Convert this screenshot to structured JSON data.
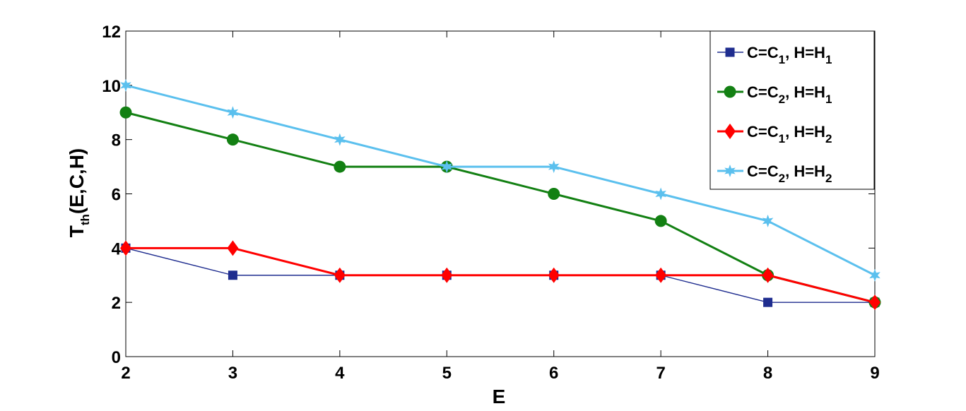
{
  "chart_data": {
    "type": "line",
    "x": [
      2,
      3,
      4,
      5,
      6,
      7,
      8,
      9
    ],
    "xlabel": "E",
    "ylabel": {
      "main": "T",
      "sub": "th",
      "rest": "(E,C,H)"
    },
    "xlim": [
      2,
      9
    ],
    "ylim": [
      0,
      12
    ],
    "xticks": [
      2,
      3,
      4,
      5,
      6,
      7,
      8,
      9
    ],
    "yticks": [
      0,
      2,
      4,
      6,
      8,
      10,
      12
    ],
    "grid": false,
    "legend_position": "top-right",
    "series": [
      {
        "legend": {
          "a": "C=C",
          "a_sub": "1",
          "b": ", H=H",
          "b_sub": "1"
        },
        "values": [
          4,
          3,
          3,
          3,
          3,
          3,
          2,
          2
        ],
        "color": "#1f2d8f",
        "marker": "square",
        "line_width": "thin"
      },
      {
        "legend": {
          "a": "C=C",
          "a_sub": "2",
          "b": ", H=H",
          "b_sub": "1"
        },
        "values": [
          9,
          8,
          7,
          7,
          6,
          5,
          3,
          2
        ],
        "color": "#138013",
        "marker": "circle",
        "line_width": "thick"
      },
      {
        "legend": {
          "a": "C=C",
          "a_sub": "1",
          "b": ", H=H",
          "b_sub": "2"
        },
        "values": [
          4,
          4,
          3,
          3,
          3,
          3,
          3,
          2
        ],
        "color": "#ff0000",
        "marker": "diamond",
        "line_width": "thick"
      },
      {
        "legend": {
          "a": "C=C",
          "a_sub": "2",
          "b": ", H=H",
          "b_sub": "2"
        },
        "values": [
          10,
          9,
          8,
          7,
          7,
          6,
          5,
          3
        ],
        "color": "#5bc0ee",
        "marker": "star",
        "line_width": "thick"
      }
    ]
  }
}
